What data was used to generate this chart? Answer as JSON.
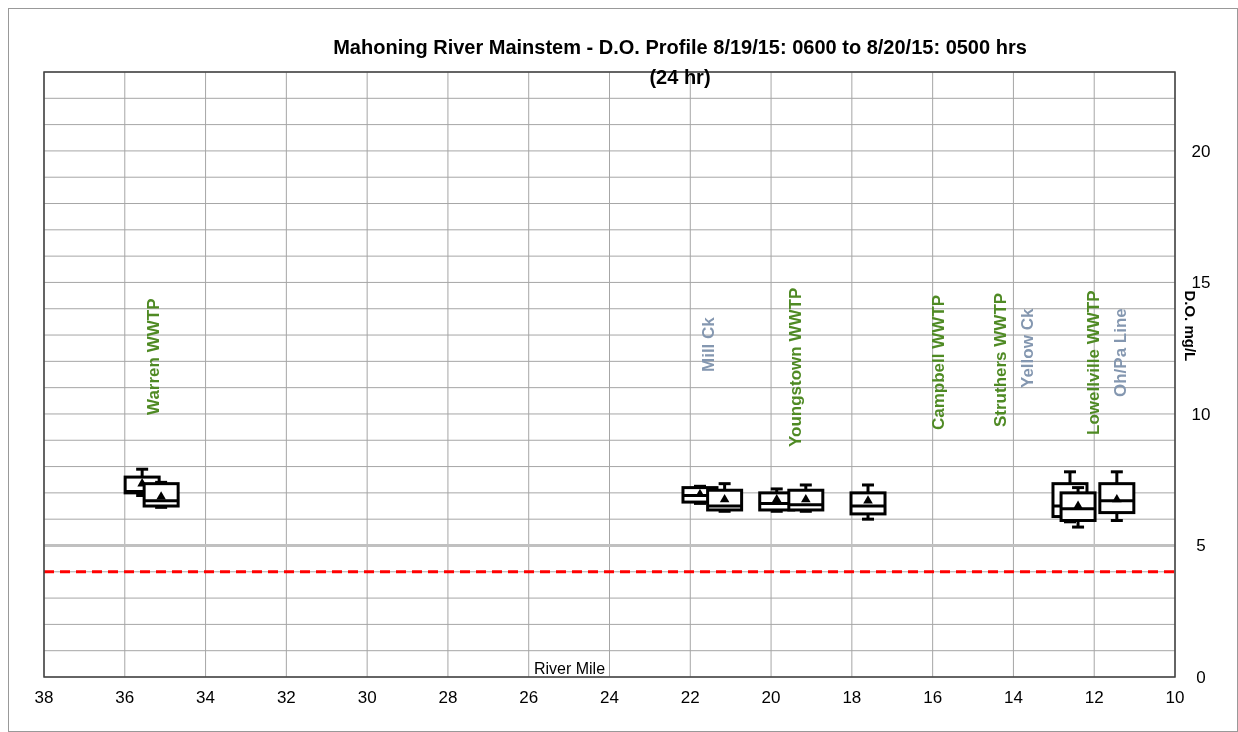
{
  "chart_data": {
    "type": "box",
    "title": "Mahoning River Mainstem - D.O. Profile 8/19/15: 0600 to 8/20/15: 0500 hrs",
    "subtitle": "(24 hr)",
    "xlabel": "River Mile",
    "ylabel": "D.O. mg/L",
    "x": [
      35.57,
      35.1,
      21.76,
      21.15,
      19.86,
      19.14,
      17.6,
      12.6,
      12.4,
      11.44
    ],
    "boxes": [
      {
        "low": 6.9,
        "q1": 7.0,
        "median": 7.05,
        "q3": 7.6,
        "high": 7.9,
        "mean": 7.35
      },
      {
        "low": 6.45,
        "q1": 6.5,
        "median": 6.7,
        "q3": 7.35,
        "high": 7.4,
        "mean": 6.85
      },
      {
        "low": 6.6,
        "q1": 6.65,
        "median": 6.9,
        "q3": 7.2,
        "high": 7.25,
        "mean": 6.95
      },
      {
        "low": 6.3,
        "q1": 6.35,
        "median": 6.5,
        "q3": 7.1,
        "high": 7.35,
        "mean": 6.75
      },
      {
        "low": 6.3,
        "q1": 6.35,
        "median": 6.6,
        "q3": 7.0,
        "high": 7.15,
        "mean": 6.75
      },
      {
        "low": 6.3,
        "q1": 6.35,
        "median": 6.55,
        "q3": 7.1,
        "high": 7.3,
        "mean": 6.75
      },
      {
        "low": 6.0,
        "q1": 6.2,
        "median": 6.5,
        "q3": 7.0,
        "high": 7.3,
        "mean": 6.7
      },
      {
        "low": 5.9,
        "q1": 6.1,
        "median": 6.5,
        "q3": 7.35,
        "high": 7.8,
        "mean": 6.6
      },
      {
        "low": 5.7,
        "q1": 5.95,
        "median": 6.4,
        "q3": 7.0,
        "high": 7.2,
        "mean": 6.5
      },
      {
        "low": 5.95,
        "q1": 6.25,
        "median": 6.7,
        "q3": 7.35,
        "high": 7.8,
        "mean": 6.75
      }
    ],
    "color": "#000000",
    "xlim": [
      38,
      10
    ],
    "xticks": [
      38,
      36,
      34,
      32,
      30,
      28,
      26,
      24,
      22,
      20,
      18,
      16,
      14,
      12,
      10
    ],
    "ylim": [
      0,
      23
    ],
    "yticks": [
      0,
      {
        "value": 1,
        "label": null
      },
      {
        "value": 2,
        "label": null
      },
      {
        "value": 3,
        "label": null
      },
      {
        "value": 4,
        "label": null
      },
      5,
      {
        "value": 6,
        "label": null
      },
      {
        "value": 7,
        "label": null
      },
      {
        "value": 8,
        "label": null
      },
      {
        "value": 9,
        "label": null
      },
      10,
      {
        "value": 11,
        "label": null
      },
      {
        "value": 12,
        "label": null
      },
      {
        "value": 13,
        "label": null
      },
      {
        "value": 14,
        "label": null
      },
      15,
      {
        "value": 16,
        "label": null
      },
      {
        "value": 17,
        "label": null
      },
      {
        "value": 18,
        "label": null
      },
      {
        "value": 19,
        "label": null
      },
      20,
      {
        "value": 21,
        "label": null
      },
      {
        "value": 22,
        "label": null
      },
      {
        "value": 23,
        "label": null
      }
    ],
    "grid": true,
    "ref_lines": [
      {
        "axis": "y",
        "value": 5,
        "color": "#c0c0c0",
        "line_style": "solid"
      },
      {
        "axis": "y",
        "value": 4,
        "color": "#ff0000",
        "line_style": "dashed"
      }
    ],
    "annotations": [
      "Warren WWTP",
      "Mill Ck",
      "Youngstown WWTP",
      "Campbell WWTP",
      "Struthers WWTP",
      "Yellow Ck",
      "Lowellville WWTP",
      "Oh/Pa Line"
    ]
  }
}
